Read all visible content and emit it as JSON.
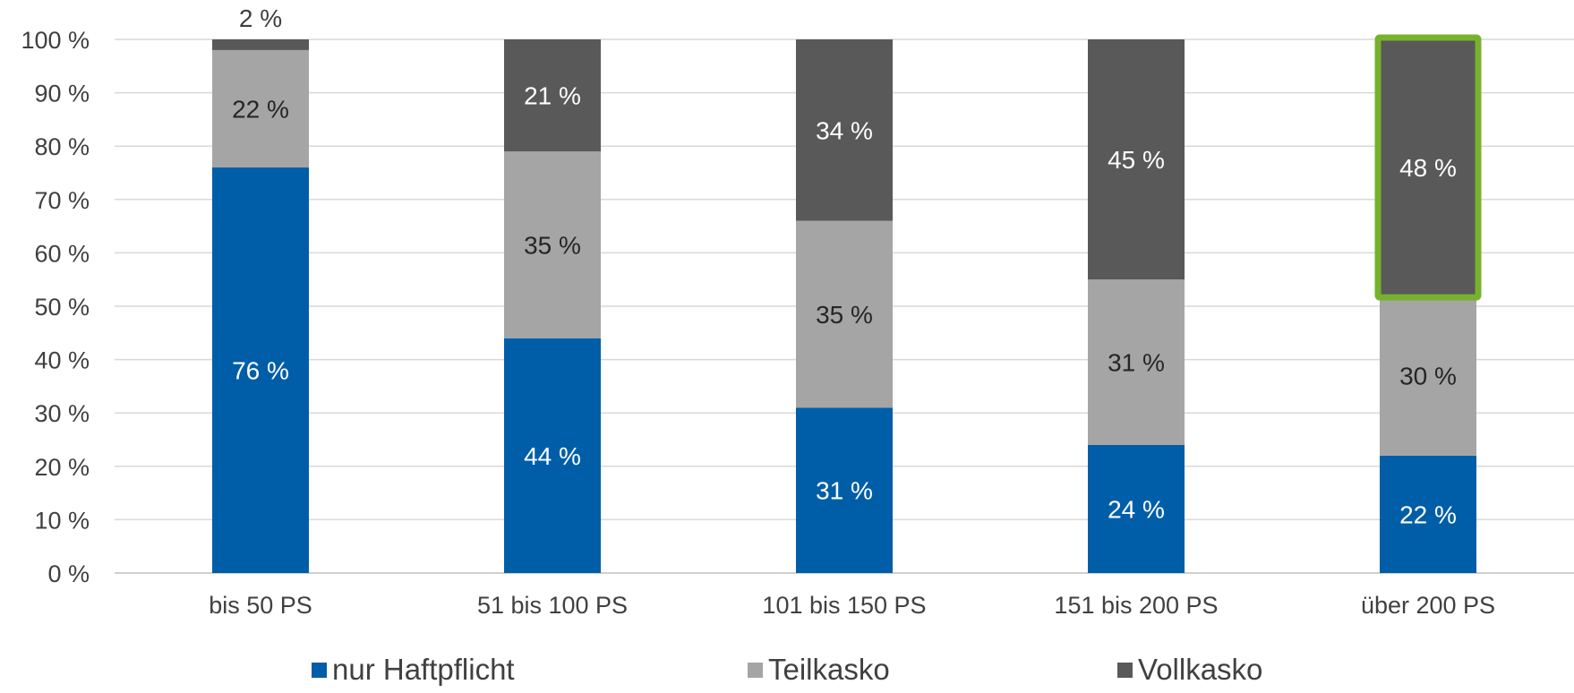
{
  "chart_data": {
    "type": "bar",
    "stacked": true,
    "percent": true,
    "categories": [
      "bis 50 PS",
      "51 bis 100 PS",
      "101 bis 150 PS",
      "151 bis 200 PS",
      "über 200 PS"
    ],
    "series": [
      {
        "name": "nur Haftpflicht",
        "color": "#005EA8",
        "values": [
          76,
          44,
          31,
          24,
          22
        ],
        "labels": [
          "76 %",
          "44 %",
          "31 %",
          "24 %",
          "22 %"
        ],
        "label_color": "#ffffff"
      },
      {
        "name": "Teilkasko",
        "color": "#A5A5A5",
        "values": [
          22,
          35,
          35,
          31,
          30
        ],
        "labels": [
          "22 %",
          "35 %",
          "35 %",
          "31 %",
          "30 %"
        ],
        "label_color": "#262626"
      },
      {
        "name": "Vollkasko",
        "color": "#595959",
        "values": [
          2,
          21,
          34,
          45,
          48
        ],
        "labels": [
          "2 %",
          "21 %",
          "34 %",
          "45 %",
          "48 %"
        ],
        "label_color": "#ffffff"
      }
    ],
    "y_ticks": [
      "0 %",
      "10 %",
      "20 %",
      "30 %",
      "40 %",
      "50 %",
      "60 %",
      "70 %",
      "80 %",
      "90 %",
      "100 %"
    ],
    "ylim": [
      0,
      100
    ],
    "grid": true,
    "legend_position": "bottom",
    "highlight": {
      "category": "über 200 PS",
      "series": "Vollkasko",
      "color": "#77B12E"
    },
    "title": "",
    "xlabel": "",
    "ylabel": ""
  }
}
